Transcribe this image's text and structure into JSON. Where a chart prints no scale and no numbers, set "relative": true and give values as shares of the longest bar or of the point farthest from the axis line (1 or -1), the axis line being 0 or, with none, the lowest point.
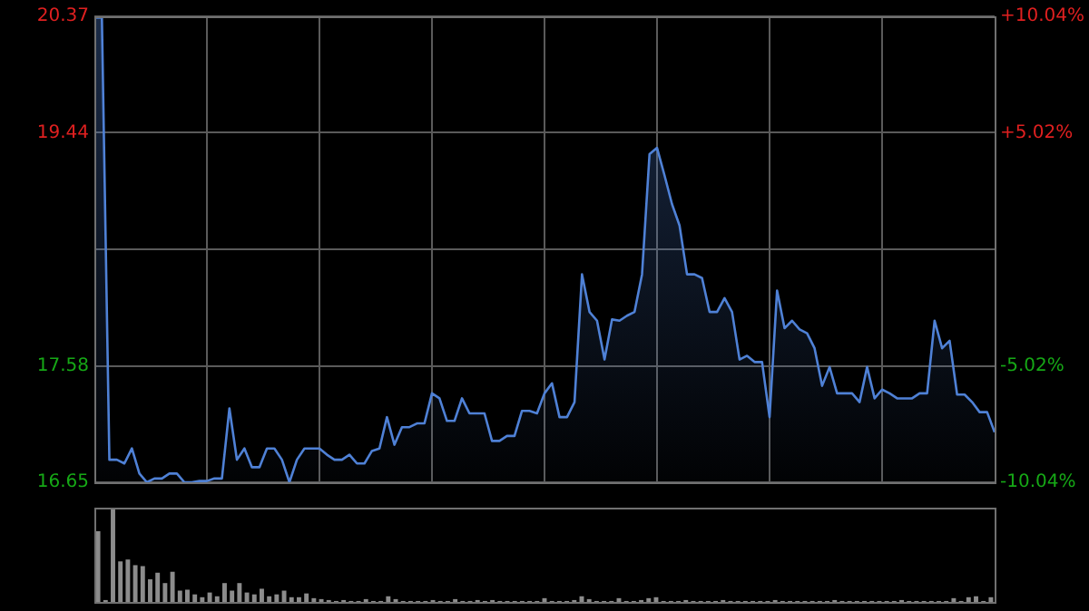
{
  "chart_data": [
    {
      "type": "area",
      "categories": [
        null,
        null,
        null,
        null,
        null,
        null,
        null,
        null,
        null,
        null,
        null,
        null,
        null,
        null,
        null,
        null,
        null,
        null,
        null,
        null,
        null,
        null,
        null,
        null,
        null,
        null,
        null,
        null,
        null,
        null,
        null,
        null,
        null,
        null,
        null,
        null,
        null,
        null,
        null,
        null,
        null,
        null,
        null,
        null,
        null,
        null,
        null,
        null,
        null,
        null,
        null,
        null,
        null,
        null,
        null,
        null,
        null,
        null,
        null,
        null,
        null,
        null,
        null,
        null,
        null,
        null,
        null,
        null,
        null,
        null,
        null,
        null,
        null,
        null,
        null,
        null,
        null,
        null,
        null,
        null,
        null,
        null,
        null,
        null,
        null,
        null,
        null,
        null,
        null,
        null,
        null,
        null,
        null,
        null,
        null,
        null,
        null,
        null,
        null,
        null,
        null,
        null,
        null,
        null,
        null,
        null,
        null,
        null,
        null,
        null,
        null,
        null,
        null,
        null,
        null,
        null,
        null,
        null,
        null,
        null,
        null
      ],
      "ylim": [
        16.65,
        20.37
      ],
      "yticks": [
        16.65,
        17.58,
        {
          "value": 18.51,
          "label": null
        },
        19.44,
        20.37
      ],
      "y2lim": [
        -10.04,
        10.04
      ],
      "y2ticks": [
        {
          "value": -10.04,
          "label": "-10.04%"
        },
        {
          "value": -5.02,
          "label": "-5.02%"
        },
        {
          "value": 0,
          "label": null
        },
        {
          "value": 5.02,
          "label": "+5.02%"
        },
        {
          "value": 10.04,
          "label": "+10.04%"
        }
      ],
      "grid": true,
      "tick_labels": "y",
      "series": [
        {
          "color": "#4f81d6",
          "values": [
            20.36,
            20.36,
            16.83,
            16.83,
            16.8,
            16.92,
            16.72,
            16.65,
            16.68,
            16.68,
            16.72,
            16.72,
            16.65,
            16.65,
            16.66,
            16.66,
            16.68,
            16.68,
            17.24,
            16.83,
            16.92,
            16.77,
            16.77,
            16.92,
            16.92,
            16.83,
            16.65,
            16.83,
            16.92,
            16.92,
            16.92,
            16.87,
            16.83,
            16.83,
            16.87,
            16.8,
            16.8,
            16.9,
            16.92,
            17.17,
            16.95,
            17.09,
            17.09,
            17.12,
            17.12,
            17.36,
            17.32,
            17.14,
            17.14,
            17.32,
            17.2,
            17.2,
            17.2,
            16.98,
            16.98,
            17.02,
            17.02,
            17.22,
            17.22,
            17.2,
            17.36,
            17.44,
            17.17,
            17.17,
            17.29,
            18.31,
            18.01,
            17.94,
            17.63,
            17.95,
            17.94,
            17.98,
            18.01,
            18.31,
            19.27,
            19.32,
            19.1,
            18.87,
            18.7,
            18.31,
            18.31,
            18.28,
            18.01,
            18.01,
            18.12,
            18.01,
            17.63,
            17.66,
            17.61,
            17.61,
            17.17,
            18.18,
            17.88,
            17.94,
            17.87,
            17.84,
            17.72,
            17.42,
            17.57,
            17.36,
            17.36,
            17.36,
            17.29,
            17.57,
            17.32,
            17.39,
            17.36,
            17.32,
            17.32,
            17.32,
            17.36,
            17.36,
            17.94,
            17.72,
            17.78,
            17.35,
            17.35,
            17.29,
            17.21,
            17.21,
            17.05
          ]
        }
      ]
    },
    {
      "type": "bar",
      "relative": true,
      "tick_labels": false,
      "categories": [
        null,
        null,
        null,
        null,
        null,
        null,
        null,
        null,
        null,
        null,
        null,
        null,
        null,
        null,
        null,
        null,
        null,
        null,
        null,
        null,
        null,
        null,
        null,
        null,
        null,
        null,
        null,
        null,
        null,
        null,
        null,
        null,
        null,
        null,
        null,
        null,
        null,
        null,
        null,
        null,
        null,
        null,
        null,
        null,
        null,
        null,
        null,
        null,
        null,
        null,
        null,
        null,
        null,
        null,
        null,
        null,
        null,
        null,
        null,
        null,
        null,
        null,
        null,
        null,
        null,
        null,
        null,
        null,
        null,
        null,
        null,
        null,
        null,
        null,
        null,
        null,
        null,
        null,
        null,
        null,
        null,
        null,
        null,
        null,
        null,
        null,
        null,
        null,
        null,
        null,
        null,
        null,
        null,
        null,
        null,
        null,
        null,
        null,
        null,
        null,
        null,
        null,
        null,
        null,
        null,
        null,
        null,
        null,
        null,
        null,
        null,
        null,
        null,
        null,
        null,
        null,
        null,
        null,
        null,
        null,
        null
      ],
      "series": [
        {
          "color": "#8c8c8c",
          "values": [
            0.75,
            0.02,
            1.0,
            0.43,
            0.45,
            0.39,
            0.38,
            0.24,
            0.31,
            0.2,
            0.32,
            0.12,
            0.13,
            0.08,
            0.05,
            0.1,
            0.06,
            0.2,
            0.12,
            0.2,
            0.1,
            0.08,
            0.14,
            0.06,
            0.08,
            0.12,
            0.05,
            0.05,
            0.09,
            0.04,
            0.03,
            0.02,
            0.01,
            0.02,
            0.01,
            0.01,
            0.03,
            0.01,
            0.01,
            0.06,
            0.03,
            0.01,
            0.01,
            0.01,
            0.01,
            0.02,
            0.01,
            0.01,
            0.03,
            0.01,
            0.01,
            0.02,
            0.01,
            0.02,
            0.01,
            0.01,
            0.01,
            0.01,
            0.01,
            0.01,
            0.04,
            0.01,
            0.01,
            0.01,
            0.02,
            0.06,
            0.03,
            0.01,
            0.01,
            0.01,
            0.04,
            0.01,
            0.01,
            0.02,
            0.04,
            0.05,
            0.01,
            0.01,
            0.01,
            0.02,
            0.01,
            0.01,
            0.01,
            0.01,
            0.02,
            0.01,
            0.01,
            0.01,
            0.01,
            0.01,
            0.01,
            0.02,
            0.01,
            0.01,
            0.01,
            0.01,
            0.01,
            0.01,
            0.01,
            0.02,
            0.01,
            0.01,
            0.01,
            0.01,
            0.01,
            0.01,
            0.01,
            0.01,
            0.02,
            0.01,
            0.01,
            0.01,
            0.01,
            0.01,
            0.01,
            0.04,
            0.01,
            0.05,
            0.06,
            0.01,
            0.05
          ]
        }
      ]
    }
  ]
}
